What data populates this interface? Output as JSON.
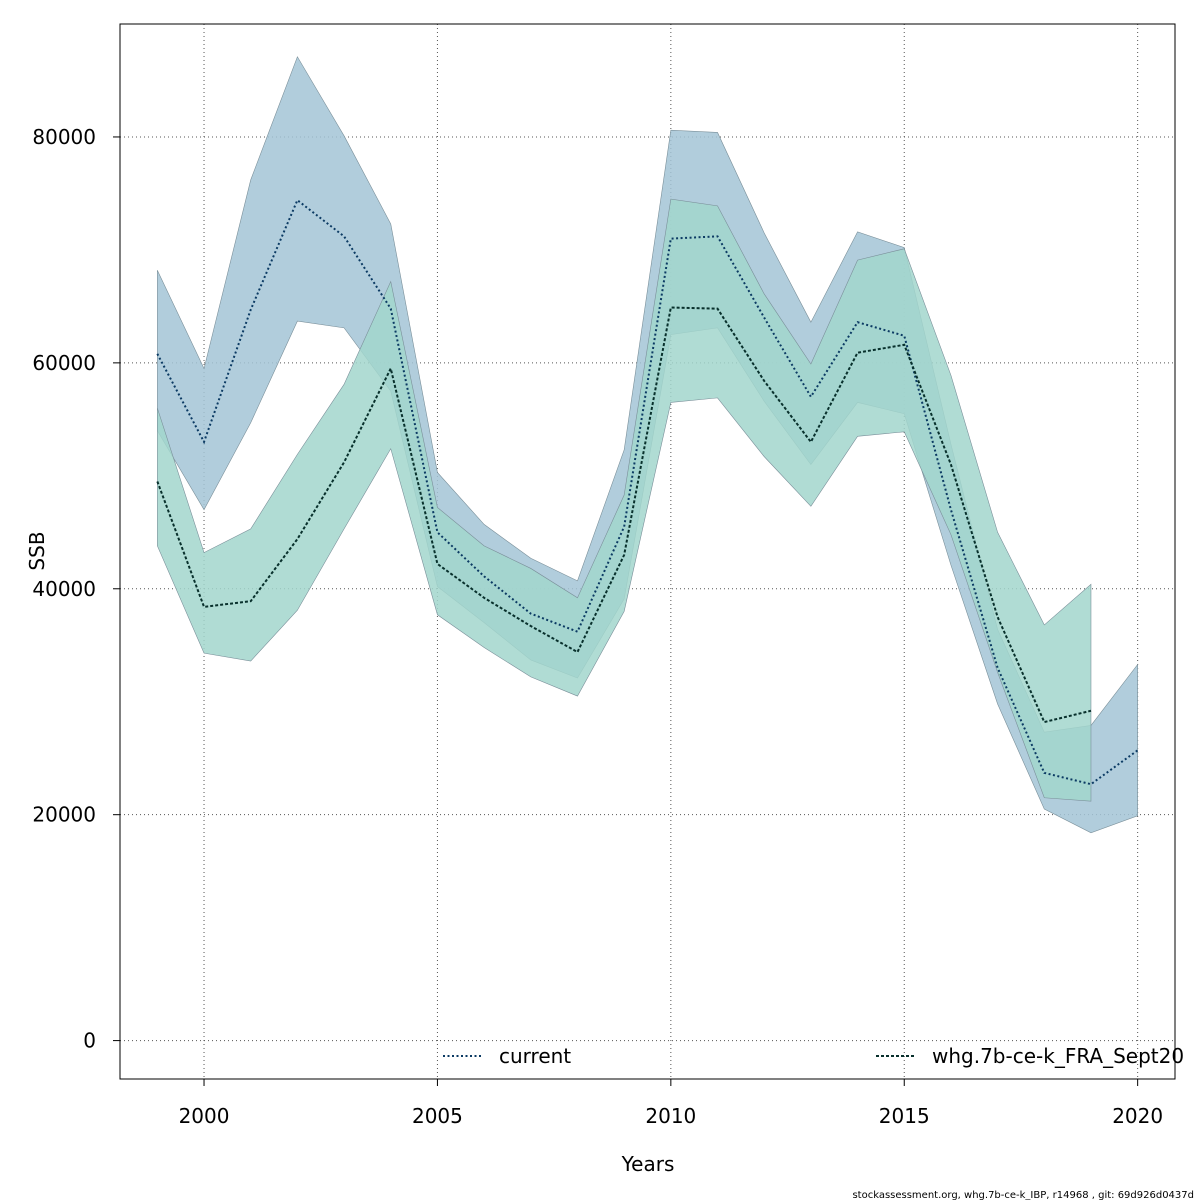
{
  "chart_data": {
    "type": "area",
    "xlabel": "Years",
    "ylabel": "SSB",
    "xlim": [
      1998.2,
      2020.8
    ],
    "ylim": [
      -3400,
      90000
    ],
    "xticks": [
      2000,
      2005,
      2010,
      2015,
      2020
    ],
    "yticks": [
      0,
      20000,
      40000,
      60000,
      80000
    ],
    "x_tick_labels": [
      "2000",
      "2005",
      "2010",
      "2015",
      "2020"
    ],
    "y_tick_labels": [
      "0",
      "20000",
      "40000",
      "60000",
      "80000"
    ],
    "grid": true,
    "legend_position": "bottom",
    "series": [
      {
        "name": "current",
        "color": "#2b7bb9",
        "band_color": "#a3c4d6",
        "line_color": "#0b3a63",
        "x": [
          1999,
          2000,
          2001,
          2002,
          2003,
          2004,
          2005,
          2006,
          2007,
          2008,
          2009,
          2010,
          2011,
          2012,
          2013,
          2014,
          2015,
          2016,
          2017,
          2018,
          2019,
          2020
        ],
        "values": [
          60800,
          53000,
          64700,
          74400,
          71200,
          64800,
          45000,
          41100,
          37800,
          36200,
          45500,
          71000,
          71200,
          64000,
          57000,
          63600,
          62400,
          47000,
          33000,
          23700,
          22700,
          25700
        ],
        "lower": [
          54000,
          47000,
          54700,
          63700,
          63100,
          57500,
          40200,
          37000,
          33700,
          32100,
          39100,
          62500,
          63100,
          56600,
          51000,
          56500,
          55500,
          42100,
          29800,
          20500,
          18400,
          19900
        ],
        "upper": [
          68200,
          59500,
          76200,
          87100,
          80100,
          72300,
          50300,
          45700,
          42700,
          40700,
          52300,
          80600,
          80400,
          71500,
          63600,
          71600,
          70200,
          52800,
          36400,
          27300,
          27900,
          33300
        ]
      },
      {
        "name": "whg.7b-ce-k_FRA_Sept20",
        "color": "#00897b",
        "band_color": "#a2d6cc",
        "line_color": "#08302c",
        "x": [
          1999,
          2000,
          2001,
          2002,
          2003,
          2004,
          2005,
          2006,
          2007,
          2008,
          2009,
          2010,
          2011,
          2012,
          2013,
          2014,
          2015,
          2016,
          2017,
          2018,
          2019
        ],
        "values": [
          49500,
          38400,
          38900,
          44400,
          51200,
          59500,
          42200,
          39200,
          36700,
          34400,
          43000,
          64900,
          64800,
          58400,
          53000,
          60900,
          61600,
          51000,
          37500,
          28200,
          29200
        ],
        "lower": [
          43800,
          34300,
          33600,
          38100,
          45300,
          52400,
          37700,
          34800,
          32200,
          30500,
          38000,
          56500,
          56900,
          51700,
          47300,
          53500,
          53900,
          44800,
          32600,
          21500,
          21200
        ],
        "upper": [
          56000,
          43200,
          45300,
          51900,
          58100,
          67200,
          47200,
          43800,
          41800,
          39200,
          48300,
          74500,
          73900,
          66100,
          59900,
          69100,
          70100,
          58900,
          45000,
          36800,
          40400
        ]
      }
    ]
  },
  "footer": "stockassessment.org, whg.7b-ce-k_IBP, r14968 , git: 69d926d0437d"
}
